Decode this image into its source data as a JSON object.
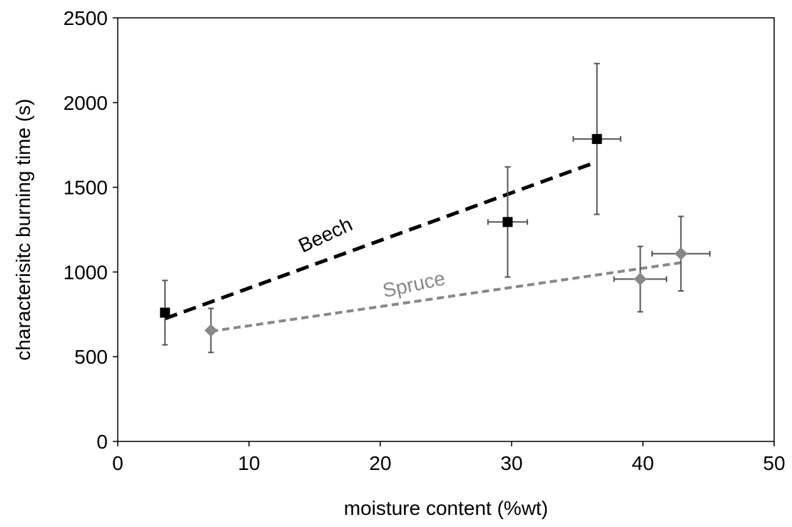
{
  "chart_data": {
    "type": "scatter",
    "xlabel": "moisture content (%wt)",
    "ylabel": "characterisitc burning time (s)",
    "xlim": [
      0,
      50
    ],
    "xticks": [
      0,
      10,
      20,
      30,
      40,
      50
    ],
    "ylim": [
      0,
      2500
    ],
    "yticks": [
      0,
      500,
      1000,
      1500,
      2000,
      2500
    ],
    "series": [
      {
        "name": "Beech",
        "color": "#000000",
        "marker": "square",
        "x": [
          3.6,
          29.7,
          36.5
        ],
        "values": [
          760,
          1295,
          1785
        ],
        "x_err": [
          null,
          1.5,
          1.8
        ],
        "y_err": [
          190,
          325,
          445
        ],
        "trend": {
          "x": [
            3.6,
            36.5
          ],
          "values": [
            725,
            1650
          ]
        }
      },
      {
        "name": "Spruce",
        "color": "#888888",
        "marker": "diamond",
        "x": [
          7.1,
          39.8,
          42.9
        ],
        "values": [
          655,
          958,
          1108
        ],
        "x_err": [
          null,
          2.0,
          2.2
        ],
        "y_err": [
          130,
          193,
          220
        ],
        "trend": {
          "x": [
            7.1,
            42.9
          ],
          "values": [
            650,
            1055
          ]
        }
      }
    ]
  }
}
